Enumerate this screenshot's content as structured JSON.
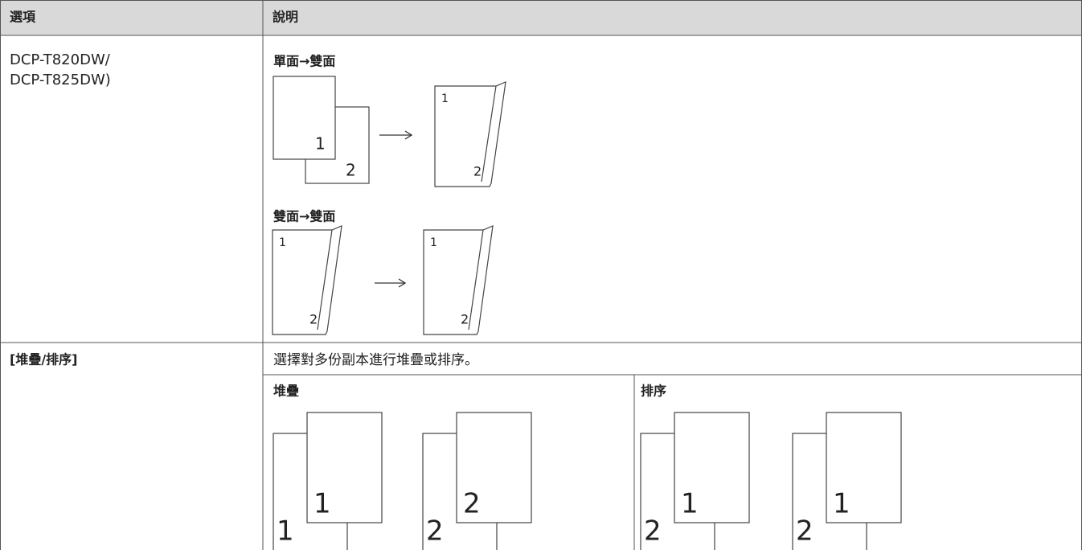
{
  "table": {
    "header": [
      "選項",
      "說明"
    ],
    "model": [
      "DCP-T820DW/",
      "DCP-T825DW)"
    ],
    "duplex": [
      {
        "title": "單面→雙面",
        "labels": [
          "1",
          "2",
          "1",
          "2"
        ]
      },
      {
        "title": "雙面→雙面",
        "labels": [
          "1",
          "2",
          "1",
          "2"
        ]
      }
    ],
    "stack_sort": {
      "option": "[堆疊/排序]",
      "description": "選擇對多份副本進行堆疊或排序。",
      "modes": [
        {
          "title": "堆疊",
          "sets": [
            [
              "1",
              "1"
            ],
            [
              "2",
              "2"
            ]
          ]
        },
        {
          "title": "排序",
          "sets": [
            [
              "2",
              "1"
            ],
            [
              "2",
              "1"
            ]
          ]
        }
      ]
    }
  }
}
